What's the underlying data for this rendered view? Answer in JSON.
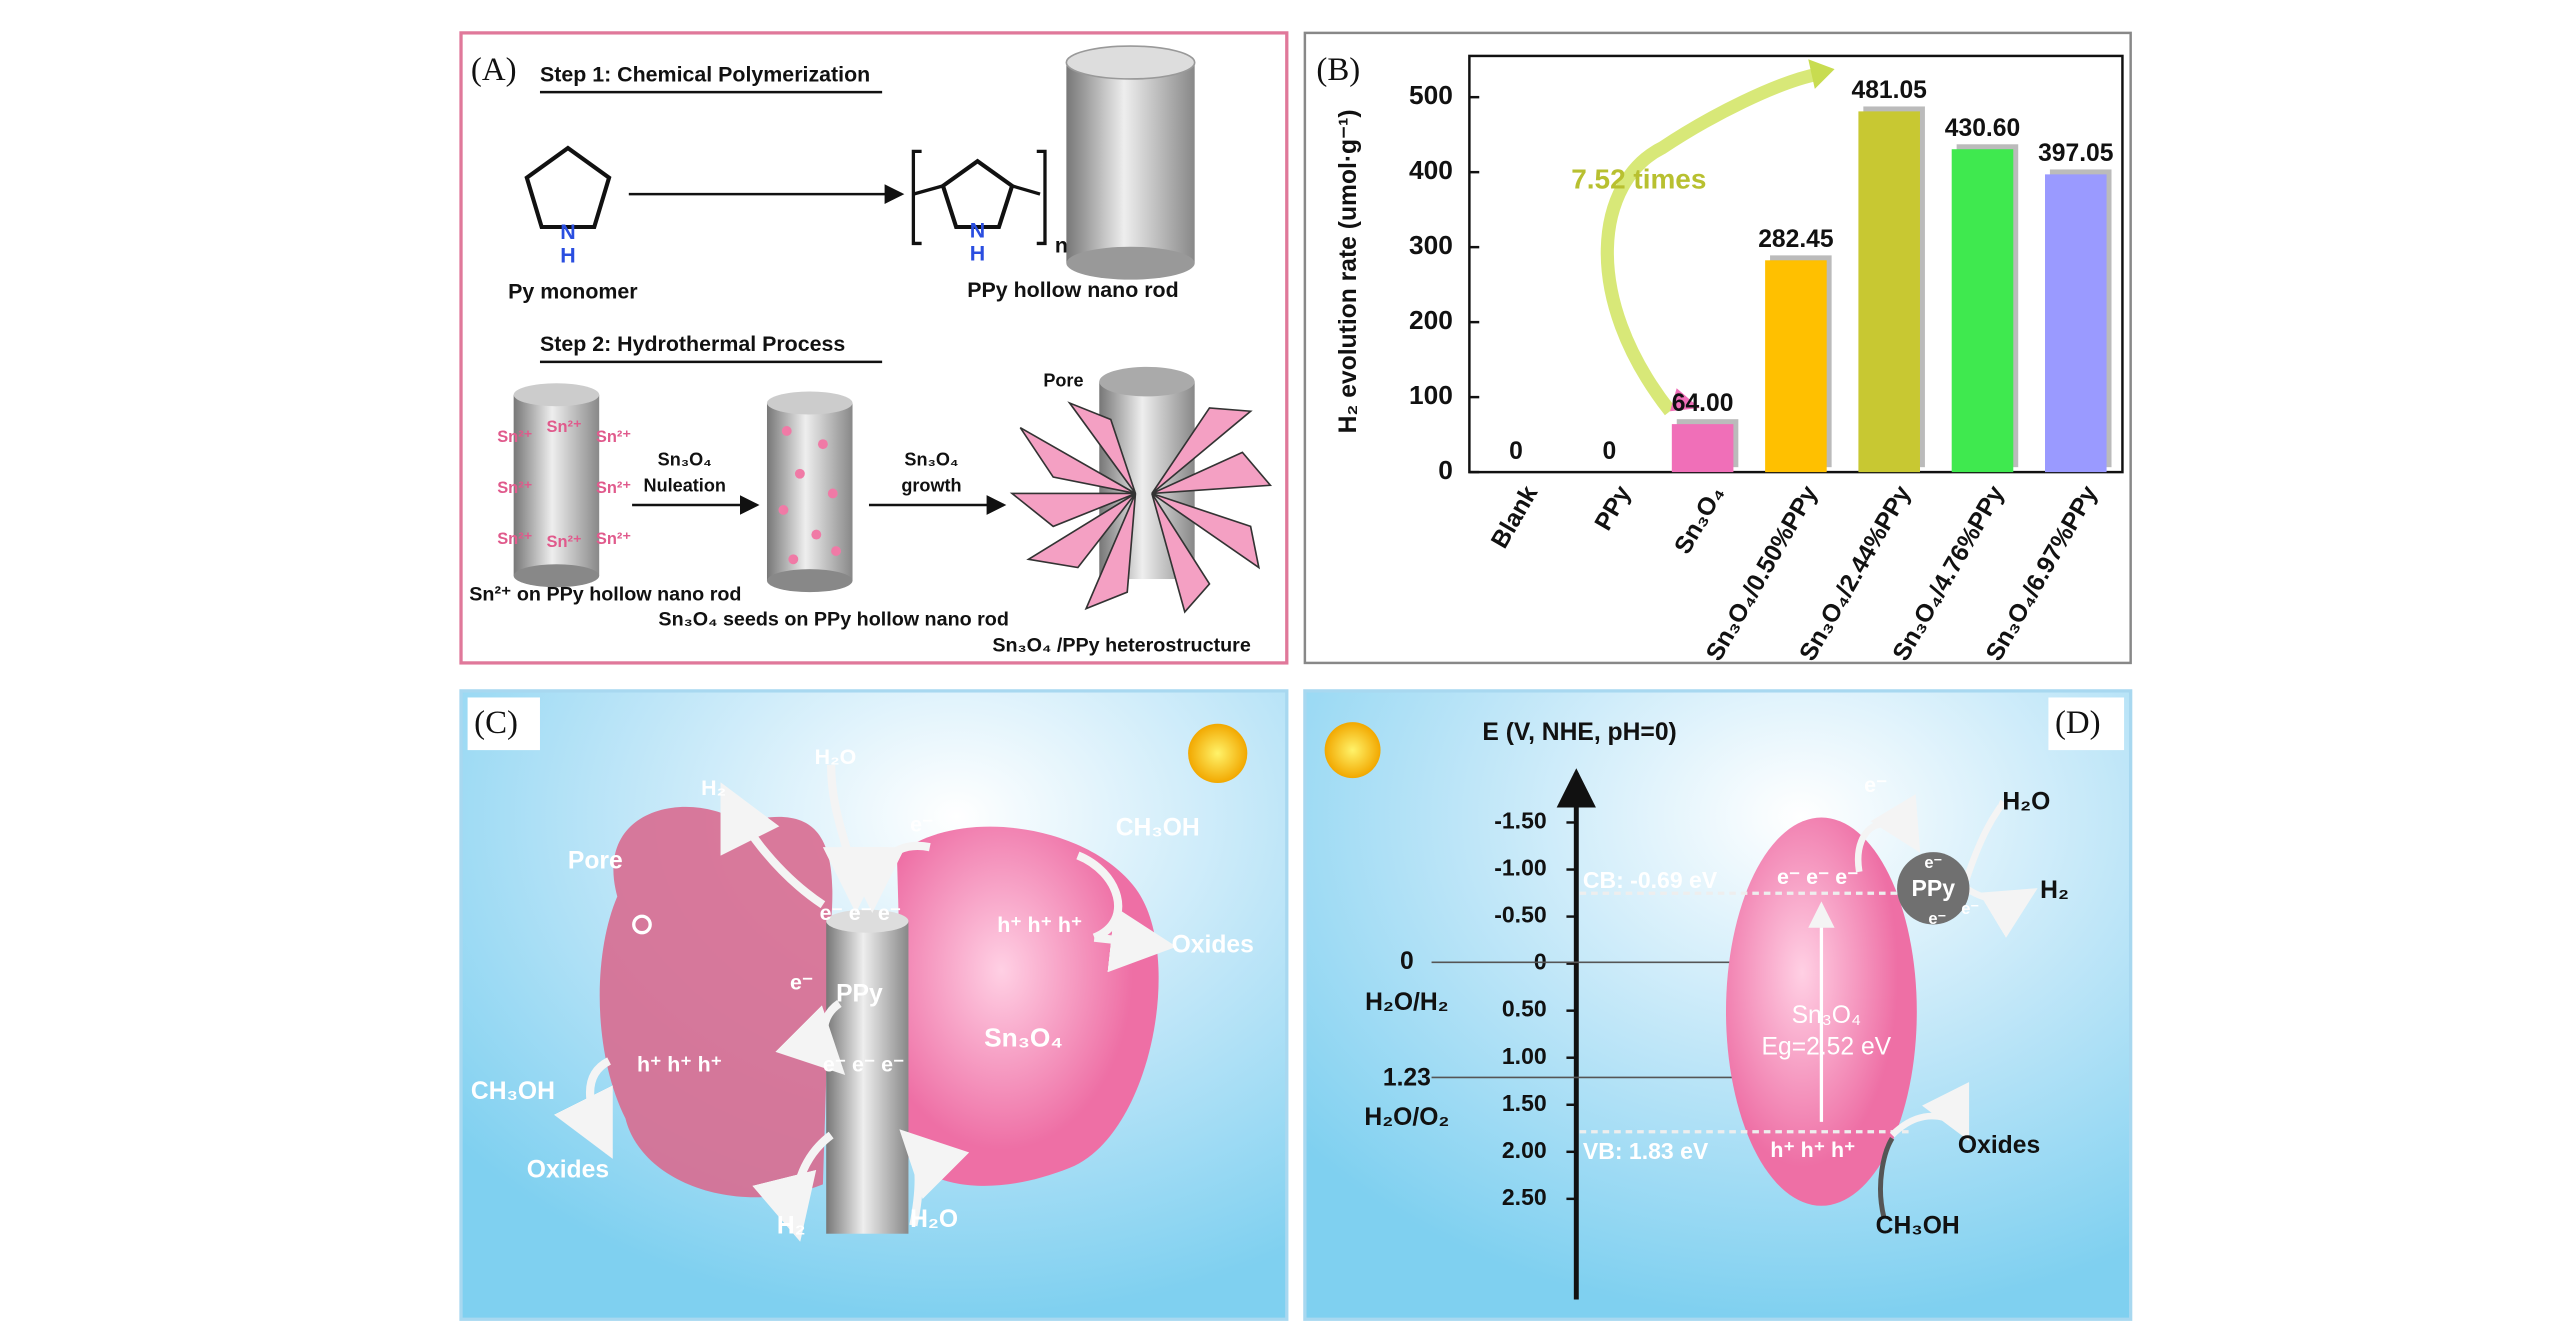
{
  "panels": {
    "A": {
      "label": "(A)",
      "step1": "Step 1: Chemical Polymerization",
      "pyrrole_atoms": [
        "N",
        "H"
      ],
      "polymer_atoms": [
        "N",
        "H"
      ],
      "repeat": "n",
      "monomer": "Py monomer",
      "rod": "PPy hollow nano rod",
      "step2": "Step 2: Hydrothermal Process",
      "ions": [
        "Sn²⁺",
        "Sn²⁺",
        "Sn²⁺",
        "Sn²⁺",
        "Sn²⁺",
        "Sn²⁺",
        "Sn²⁺",
        "Sn²⁺"
      ],
      "nucleation": [
        "Sn₃O₄",
        "Nuleation"
      ],
      "growth": [
        "Sn₃O₄",
        "growth"
      ],
      "pore": "Pore",
      "caption_1": "Sn²⁺ on PPy hollow nano rod",
      "caption_2": "Sn₃O₄ seeds on PPy hollow nano rod",
      "caption_3": "Sn₃O₄ /PPy heterostructure"
    },
    "C": {
      "label": "(C)",
      "water_top": "H₂O",
      "h2_top": "H₂",
      "pore": "Pore",
      "e_top": "e⁻",
      "methanol_right": "CH₃OH",
      "holes_right": "h⁺ h⁺ h⁺",
      "oxides_right": "Oxides",
      "electrons_top": "e⁻ e⁻ e⁻",
      "ppy": "PPy",
      "e_mid": "e⁻",
      "electrons_bottom": "e⁻ e⁻ e⁻",
      "holes_left": "h⁺ h⁺ h⁺",
      "sn3o4": "Sn₃O₄",
      "methanol_left": "CH₃OH",
      "oxides_left": "Oxides",
      "h2_bottom": "H₂",
      "water_bottom": "H₂O"
    },
    "D": {
      "label": "(D)",
      "axis_title": "E (V, NHE, pH=0)",
      "scale": [
        "-1.50",
        "-1.00",
        "-0.50",
        "0",
        "0.50",
        "1.00",
        "1.50",
        "2.00",
        "2.50"
      ],
      "h2_level": [
        "0",
        "H₂O/H₂"
      ],
      "o2_level": [
        "1.23",
        "H₂O/O₂"
      ],
      "cb": "CB: -0.69 eV",
      "vb": "VB: 1.83 eV",
      "electrons_cb": "e⁻ e⁻ e⁻",
      "holes_vb": "h⁺ h⁺ h⁺",
      "material": "Sn₃O₄",
      "gap": "Eg=2.52 eV",
      "excited": "e⁻",
      "ppy": "PPy",
      "ppy_electrons": [
        "e⁻",
        "e⁻",
        "e⁻"
      ],
      "water": "H₂O",
      "h2": "H₂",
      "oxides": "Oxides",
      "methanol": "CH₃OH"
    }
  },
  "chart_data": {
    "type": "bar",
    "panel_label": "(B)",
    "y_label": "H₂ evolution rate (umol·g⁻¹)",
    "annotation": "7.52 times",
    "categories": [
      "Blank",
      "PPy",
      "Sn₃O₄",
      "Sn₃O₄/0.50%PPy",
      "Sn₃O₄/2.44%PPy",
      "Sn₃O₄/4.76%PPy",
      "Sn₃O₄/6.97%PPy"
    ],
    "values": [
      0,
      0,
      64.0,
      282.45,
      481.05,
      430.6,
      397.05
    ],
    "value_labels": [
      "0",
      "0",
      "64.00",
      "282.45",
      "481.05",
      "430.60",
      "397.05"
    ],
    "colors": [
      "#cccccc",
      "#cccccc",
      "#f06fb8",
      "#ffc000",
      "#c8c832",
      "#3fe94f",
      "#9a9aff"
    ],
    "ylim": [
      0,
      555
    ],
    "yticks": [
      0,
      100,
      200,
      300,
      400,
      500
    ]
  }
}
